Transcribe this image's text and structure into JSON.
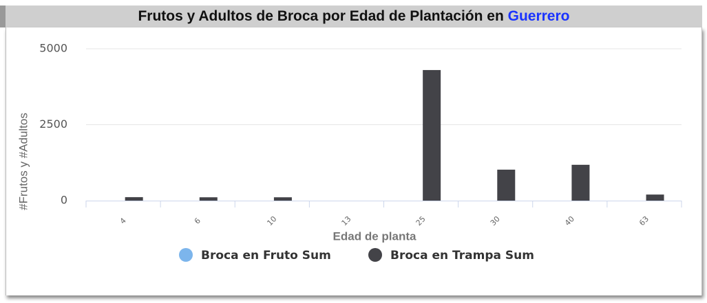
{
  "chart_data": {
    "type": "bar",
    "title": "Frutos y Adultos de Broca por Edad de Plantación en",
    "title_location": "Guerrero",
    "x_label": "Edad de planta",
    "y_label": "#Frutos y #Adultos",
    "categories": [
      "4",
      "6",
      "10",
      "13",
      "25",
      "30",
      "40",
      "63"
    ],
    "series": [
      {
        "name": "Broca en Fruto Sum",
        "color": "#7cb5ec",
        "values": [
          0,
          0,
          0,
          0,
          0,
          0,
          0,
          0
        ]
      },
      {
        "name": "Broca en Trampa Sum",
        "color": "#434348",
        "values": [
          115,
          110,
          110,
          0,
          4300,
          1020,
          1180,
          200
        ]
      }
    ],
    "ylim": [
      0,
      5000
    ],
    "yticks": [
      0,
      2500,
      5000
    ],
    "grid": true
  }
}
